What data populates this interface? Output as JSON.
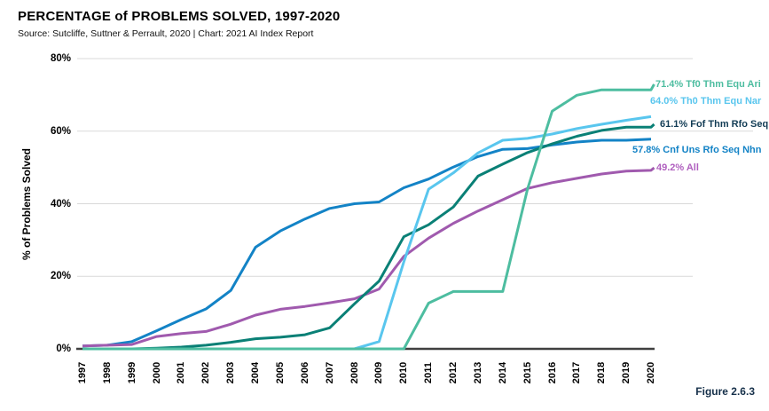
{
  "header": {
    "title": "PERCENTAGE of PROBLEMS SOLVED, 1997-2020",
    "source": "Source: Sutcliffe, Suttner & Perrault, 2020 | Chart: 2021 AI Index Report"
  },
  "figure_label": "Figure 2.6.3",
  "axes": {
    "y_label": "% of Problems Solved",
    "y_ticks": [
      0,
      20,
      40,
      60,
      80
    ],
    "y_tick_labels": [
      "0%",
      "20%",
      "40%",
      "60%",
      "80%"
    ],
    "x_ticks": [
      1997,
      1998,
      1999,
      2000,
      2001,
      2002,
      2003,
      2004,
      2005,
      2006,
      2007,
      2008,
      2009,
      2010,
      2011,
      2012,
      2013,
      2014,
      2015,
      2016,
      2017,
      2018,
      2019,
      2020
    ]
  },
  "colors": {
    "gridline": "#d9d9d9",
    "axis_line": "#404040",
    "figure_label": "#16304a"
  },
  "chart_data": {
    "type": "line",
    "title": "PERCENTAGE of PROBLEMS SOLVED, 1997-2020",
    "xlabel": "",
    "ylabel": "% of Problems Solved",
    "ylim": [
      0,
      80
    ],
    "grid": true,
    "legend_position": "right-end-labels",
    "x": [
      1997,
      1998,
      1999,
      2000,
      2001,
      2002,
      2003,
      2004,
      2005,
      2006,
      2007,
      2008,
      2009,
      2010,
      2011,
      2012,
      2013,
      2014,
      2015,
      2016,
      2017,
      2018,
      2019,
      2020
    ],
    "series": [
      {
        "name": "Tf0 Thm Equ Ari",
        "end_label": "71.4% Tf0 Thm Equ Ari",
        "final_value": 71.4,
        "color": "#4dbda0",
        "label_color": "#4dbda0",
        "values": [
          0,
          0,
          0,
          0,
          0,
          0,
          0,
          0,
          0,
          0,
          0,
          0,
          0,
          0,
          12.6,
          15.8,
          15.8,
          15.8,
          44,
          65.5,
          69.9,
          71.4,
          71.4,
          71.4
        ]
      },
      {
        "name": "Th0 Thm Equ Nar",
        "end_label": "64.0% Th0 Thm Equ Nar",
        "final_value": 64.0,
        "color": "#59c6ee",
        "label_color": "#59c6ee",
        "values": [
          0,
          0,
          0,
          0,
          0,
          0,
          0,
          0,
          0,
          0,
          0,
          0,
          2,
          24,
          44,
          48.5,
          54,
          57.5,
          58,
          59.2,
          60.7,
          61.9,
          63,
          64
        ]
      },
      {
        "name": "Fof Thm Rfo Seq",
        "end_label": "61.1% Fof Thm Rfo Seq",
        "final_value": 61.1,
        "color": "#0a8076",
        "label_color": "#123c55",
        "values": [
          0,
          0,
          0,
          0.2,
          0.5,
          1,
          1.8,
          2.8,
          3.2,
          3.9,
          5.8,
          12.4,
          18.7,
          30.9,
          34.2,
          39.1,
          47.6,
          50.9,
          54.1,
          56.5,
          58.6,
          60.2,
          61.1,
          61.1
        ]
      },
      {
        "name": "Cnf Uns Rfo Seq Nhn",
        "end_label": "57.8% Cnf Uns Rfo Seq Nhn",
        "final_value": 57.8,
        "color": "#1383c6",
        "label_color": "#1383c6",
        "values": [
          0.8,
          1,
          2,
          5,
          8.1,
          11,
          16.1,
          28,
          32.5,
          35.8,
          38.7,
          40,
          40.5,
          44.4,
          46.8,
          50.1,
          53,
          55,
          55.2,
          56.2,
          57,
          57.5,
          57.5,
          57.8
        ]
      },
      {
        "name": "All",
        "end_label": "49.2% All",
        "final_value": 49.2,
        "color": "#a05aae",
        "label_color": "#b060bf",
        "values": [
          0.8,
          1,
          1.2,
          3.4,
          4.2,
          4.8,
          6.8,
          9.3,
          10.9,
          11.7,
          12.7,
          13.8,
          16.5,
          25.5,
          30.5,
          34.6,
          38,
          41.1,
          44.2,
          45.8,
          47,
          48.2,
          49,
          49.2
        ]
      }
    ]
  }
}
